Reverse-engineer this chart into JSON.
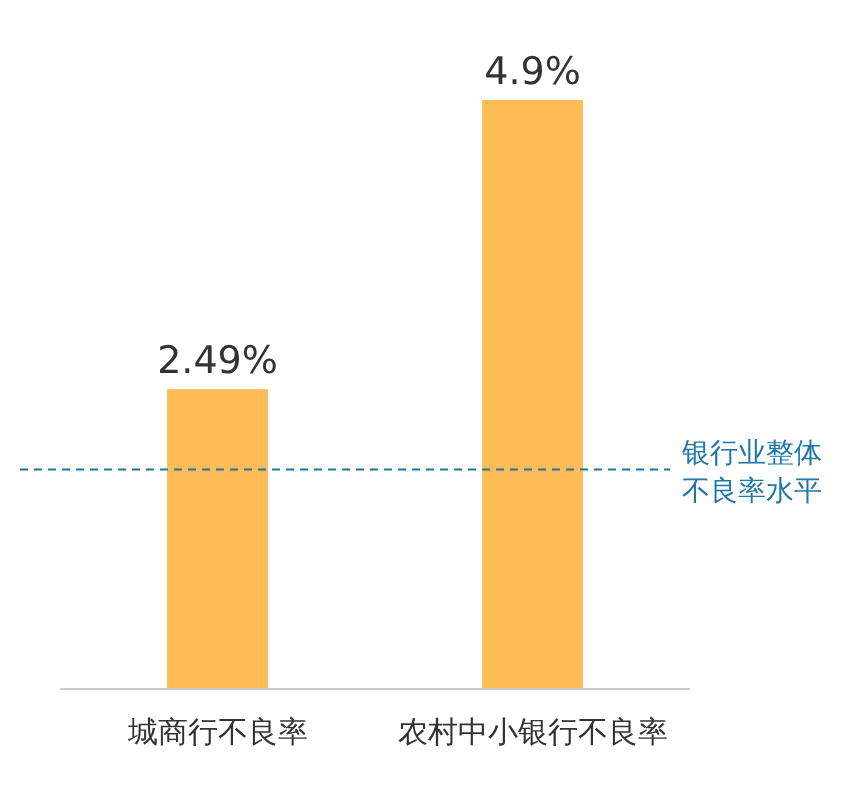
{
  "chart_data": {
    "type": "bar",
    "categories": [
      "城商行不良率",
      "农村中小银行不良率"
    ],
    "values": [
      2.49,
      4.9
    ],
    "value_labels": [
      "2.49%",
      "4.9%"
    ],
    "color": "#ffbb55",
    "ref_lines": [
      {
        "axis": "y",
        "value": 1.82,
        "label": "银行业整体不良率水平",
        "color": "#1f77a8",
        "line_style": "dashed"
      }
    ]
  }
}
